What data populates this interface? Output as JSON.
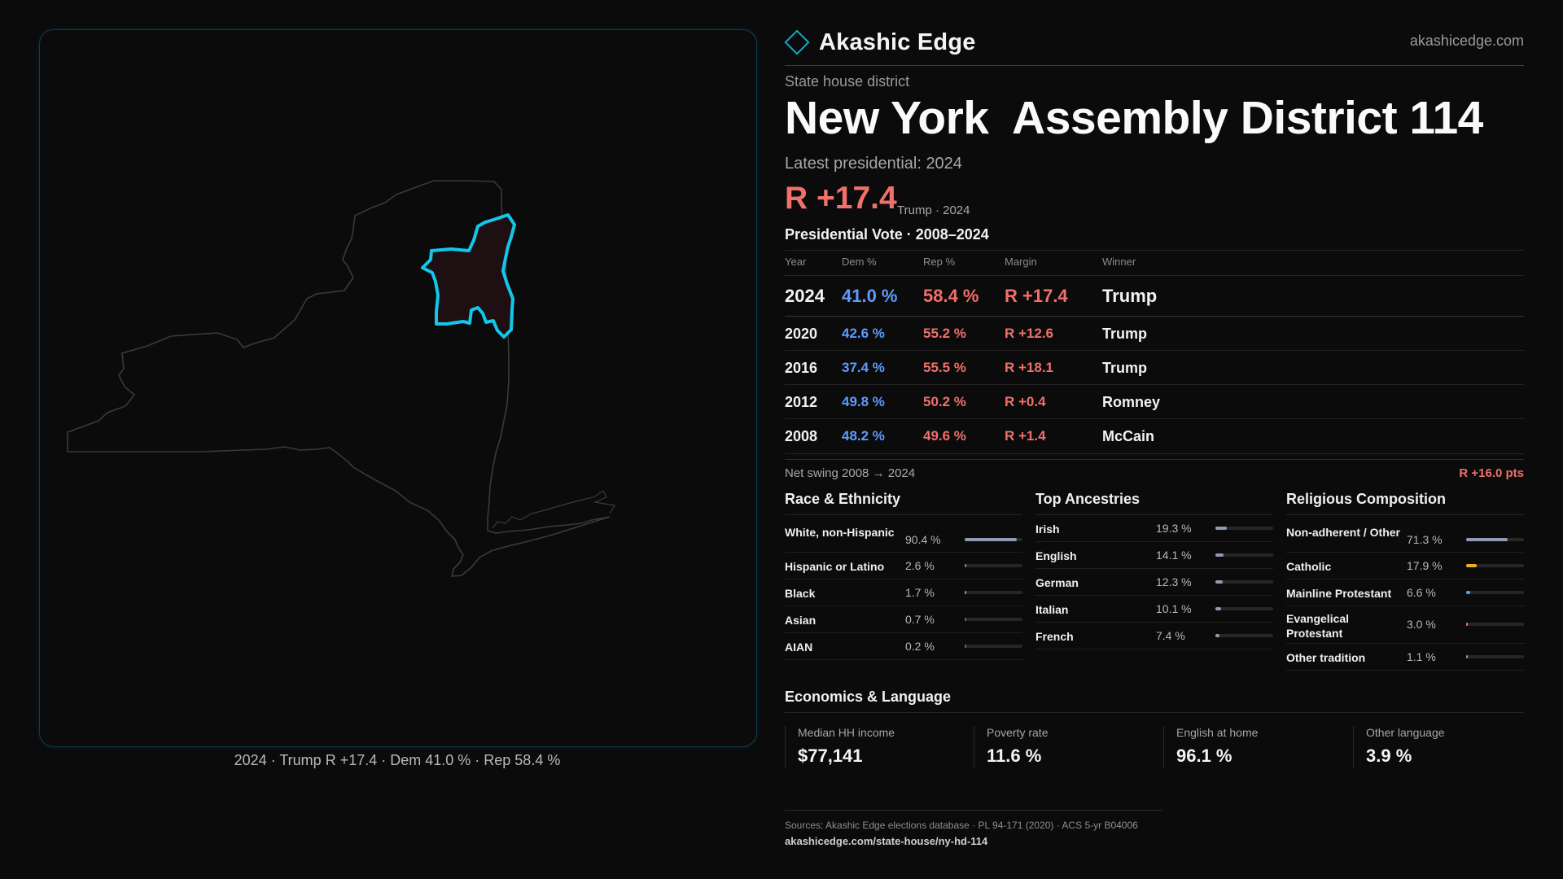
{
  "map": {
    "caption": "2024 · Trump R +17.4 · Dem 41.0 % · Rep 58.4 %",
    "state_outline_color": "#3a3a3a",
    "district_outline_color": "#13c7ea",
    "district_fill_color": "#1e1012"
  },
  "brand": {
    "name": "Akashic Edge",
    "domain": "akashicedge.com",
    "accent": "#16a9c3"
  },
  "header": {
    "kind": "State house district",
    "title": "New York  Assembly District 114",
    "latest_label": "Latest presidential: 2024",
    "margin": "R +17.4",
    "margin_sub": "Trump · 2024"
  },
  "presidential": {
    "title": "Presidential Vote · 2008–2024",
    "columns": [
      "Year",
      "Dem %",
      "Rep %",
      "Margin",
      "Winner"
    ],
    "rows": [
      {
        "year": "2024",
        "dem": "41.0 %",
        "rep": "58.4 %",
        "margin": "R +17.4",
        "winner": "Trump"
      },
      {
        "year": "2020",
        "dem": "42.6 %",
        "rep": "55.2 %",
        "margin": "R +12.6",
        "winner": "Trump"
      },
      {
        "year": "2016",
        "dem": "37.4 %",
        "rep": "55.5 %",
        "margin": "R +18.1",
        "winner": "Trump"
      },
      {
        "year": "2012",
        "dem": "49.8 %",
        "rep": "50.2 %",
        "margin": "R +0.4",
        "winner": "Romney"
      },
      {
        "year": "2008",
        "dem": "48.2 %",
        "rep": "49.6 %",
        "margin": "R +1.4",
        "winner": "McCain"
      }
    ],
    "swing_label": "Net swing 2008 → 2024",
    "swing_value": "R +16.0 pts",
    "dem_color": "#5e9bff",
    "rep_color": "#f0706a"
  },
  "race": {
    "title": "Race & Ethnicity",
    "rows": [
      {
        "label": "White, non-Hispanic",
        "pct": "90.4 %",
        "value": 90.4,
        "color": "#8f9bb0"
      },
      {
        "label": "Hispanic or Latino",
        "pct": "2.6 %",
        "value": 2.6,
        "color": "#e0783a"
      },
      {
        "label": "Black",
        "pct": "1.7 %",
        "value": 1.7,
        "color": "#5e9bff"
      },
      {
        "label": "Asian",
        "pct": "0.7 %",
        "value": 0.7,
        "color": "#6a6a6a"
      },
      {
        "label": "AIAN",
        "pct": "0.2 %",
        "value": 0.2,
        "color": "#6a6a6a"
      }
    ]
  },
  "ancestry": {
    "title": "Top Ancestries",
    "rows": [
      {
        "label": "Irish",
        "pct": "19.3 %",
        "value": 19.3,
        "color": "#8f9bb0"
      },
      {
        "label": "English",
        "pct": "14.1 %",
        "value": 14.1,
        "color": "#8f9bb0"
      },
      {
        "label": "German",
        "pct": "12.3 %",
        "value": 12.3,
        "color": "#8f9bb0"
      },
      {
        "label": "Italian",
        "pct": "10.1 %",
        "value": 10.1,
        "color": "#8f9bb0"
      },
      {
        "label": "French",
        "pct": "7.4 %",
        "value": 7.4,
        "color": "#8f9bb0"
      }
    ]
  },
  "religion": {
    "title": "Religious Composition",
    "rows": [
      {
        "label": "Non-adherent / Other",
        "pct": "71.3 %",
        "value": 71.3,
        "color": "#8f9bb0"
      },
      {
        "label": "Catholic",
        "pct": "17.9 %",
        "value": 17.9,
        "color": "#e8b21c"
      },
      {
        "label": "Mainline Protestant",
        "pct": "6.6 %",
        "value": 6.6,
        "color": "#5e9bff"
      },
      {
        "label": "Evangelical Protestant",
        "pct": "3.0 %",
        "value": 3.0,
        "color": "#f0706a"
      },
      {
        "label": "Other tradition",
        "pct": "1.1 %",
        "value": 1.1,
        "color": "#8f9bb0"
      }
    ]
  },
  "economics": {
    "title": "Economics & Language",
    "cells": [
      {
        "label": "Median HH income",
        "value": "$77,141"
      },
      {
        "label": "Poverty rate",
        "value": "11.6 %"
      },
      {
        "label": "English at home",
        "value": "96.1 %"
      },
      {
        "label": "Other language",
        "value": "3.9 %"
      }
    ]
  },
  "footer": {
    "sources": "Sources: Akashic Edge elections database · PL 94-171 (2020) · ACS 5-yr B04006",
    "url": "akashicedge.com/state-house/ny-hd-114"
  }
}
